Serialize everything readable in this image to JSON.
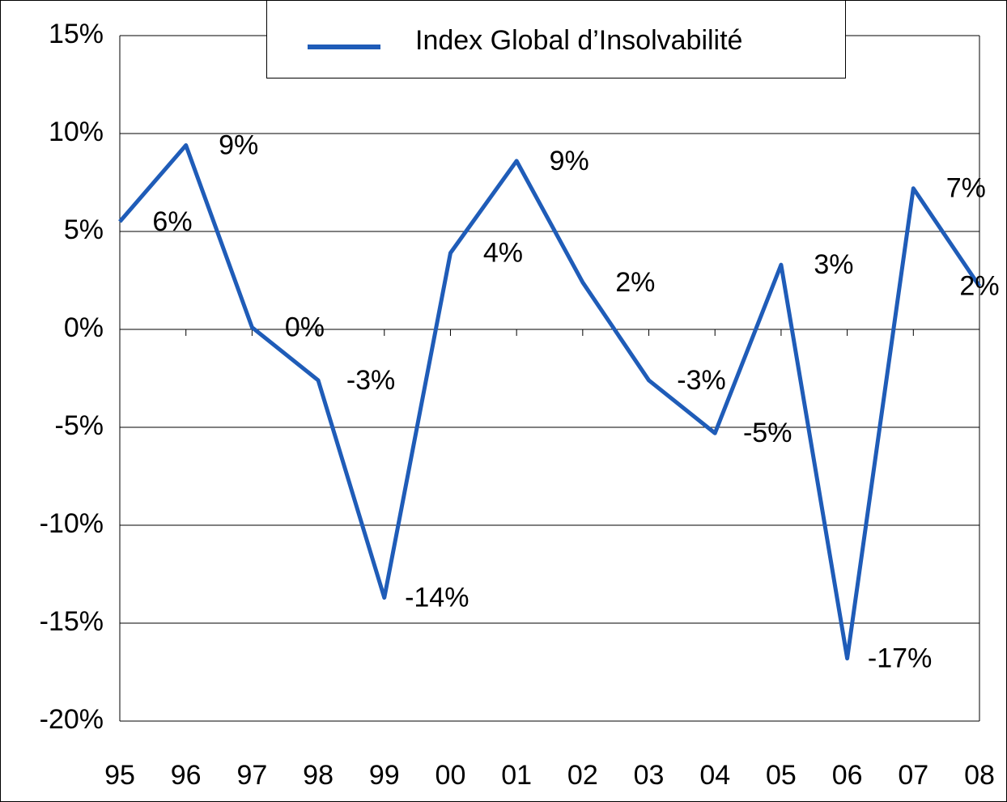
{
  "chart_data": {
    "type": "line",
    "categories": [
      "95",
      "96",
      "97",
      "98",
      "99",
      "00",
      "01",
      "02",
      "03",
      "04",
      "05",
      "06",
      "07",
      "08"
    ],
    "series": [
      {
        "name": "Index Global d’Insolvabilité",
        "color": "#1f5cb8",
        "values": [
          5.5,
          9.4,
          0.1,
          -2.6,
          -13.7,
          3.9,
          8.6,
          2.4,
          -2.6,
          -5.3,
          3.3,
          -16.8,
          7.2,
          2.2
        ],
        "value_labels": [
          "6%",
          "9%",
          "0%",
          "-3%",
          "-14%",
          "4%",
          "9%",
          "2%",
          "-3%",
          "-5%",
          "3%",
          "-17%",
          "7%",
          "2%"
        ]
      }
    ],
    "ylim": [
      -20,
      15
    ],
    "yticks": [
      {
        "value": 15,
        "label": "15%"
      },
      {
        "value": 10,
        "label": "10%"
      },
      {
        "value": 5,
        "label": "5%"
      },
      {
        "value": 0,
        "label": "0%"
      },
      {
        "value": -5,
        "label": "-5%"
      },
      {
        "value": -10,
        "label": "-10%"
      },
      {
        "value": -15,
        "label": "-15%"
      },
      {
        "value": -20,
        "label": "-20%"
      }
    ],
    "grid": true,
    "legend": "top"
  }
}
